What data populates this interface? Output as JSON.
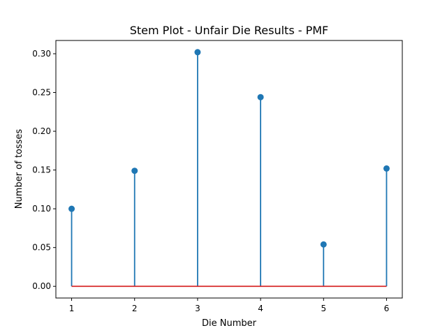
{
  "chart_data": {
    "type": "stem",
    "title": "Stem Plot - Unfair Die Results - PMF",
    "xlabel": "Die Number",
    "ylabel": "Number of tosses",
    "x": [
      1,
      2,
      3,
      4,
      5,
      6
    ],
    "values": [
      0.1,
      0.149,
      0.302,
      0.244,
      0.054,
      0.152
    ],
    "xlim": [
      0.75,
      6.25
    ],
    "ylim": [
      -0.0151,
      0.3171
    ],
    "xticks": [
      1,
      2,
      3,
      4,
      5,
      6
    ],
    "yticks": [
      0.0,
      0.05,
      0.1,
      0.15,
      0.2,
      0.25,
      0.3
    ],
    "ytick_labels": [
      "0.00",
      "0.05",
      "0.10",
      "0.15",
      "0.20",
      "0.25",
      "0.30"
    ],
    "baseline": 0,
    "grid": false,
    "colors": {
      "stem": "#1f77b4",
      "baseline": "#d62728"
    }
  }
}
